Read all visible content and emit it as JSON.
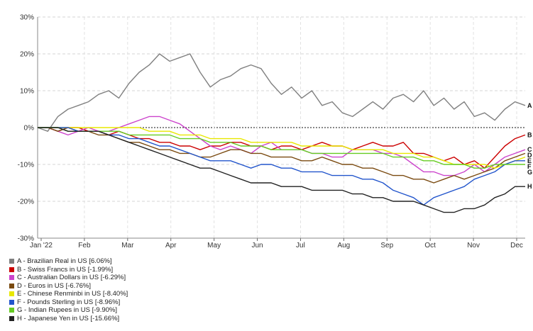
{
  "chart_data": {
    "type": "line",
    "title": "",
    "xlabel": "",
    "ylabel": "",
    "ylim": [
      -30,
      30
    ],
    "y_ticks": [
      "30%",
      "20%",
      "10%",
      "0%",
      "-10%",
      "-20%",
      "-30%"
    ],
    "x_tick_labels": [
      "Jan '22",
      "Feb",
      "Mar",
      "Apr",
      "May",
      "Jun",
      "Jul",
      "Aug",
      "Sep",
      "Oct",
      "Nov",
      "Dec"
    ],
    "grid": true,
    "legend_placement": "bottom",
    "x_weeks": [
      0,
      1,
      2,
      3,
      4,
      5,
      6,
      7,
      8,
      9,
      10,
      11,
      12,
      13,
      14,
      15,
      16,
      17,
      18,
      19,
      20,
      21,
      22,
      23,
      24,
      25,
      26,
      27,
      28,
      29,
      30,
      31,
      32,
      33,
      34,
      35,
      36,
      37,
      38,
      39,
      40,
      41,
      42,
      43,
      44,
      45,
      46,
      47,
      48
    ],
    "series": [
      {
        "name": "A - Brazilian Real in US [6.06%]",
        "end_label": "A",
        "color": "#808080",
        "values": [
          0,
          -1,
          3,
          5,
          6,
          7,
          9,
          10,
          8,
          12,
          15,
          17,
          20,
          18,
          19,
          20,
          15,
          11,
          13,
          14,
          16,
          17,
          16,
          12,
          9,
          11,
          8,
          10,
          6,
          7,
          4,
          3,
          5,
          7,
          5,
          8,
          9,
          7,
          10,
          6,
          8,
          5,
          7,
          3,
          4,
          2,
          5,
          7,
          6
        ]
      },
      {
        "name": "B - Swiss Francs in US [-1.99%]",
        "end_label": "B",
        "color": "#cc0000",
        "values": [
          0,
          0,
          -1,
          0,
          0,
          -1,
          -1,
          -2,
          -1,
          -2,
          -3,
          -3,
          -4,
          -4,
          -5,
          -5,
          -6,
          -5,
          -5,
          -4,
          -4,
          -5,
          -5,
          -6,
          -5,
          -5,
          -6,
          -5,
          -4,
          -5,
          -5,
          -6,
          -5,
          -4,
          -5,
          -5,
          -4,
          -7,
          -7,
          -8,
          -9,
          -8,
          -10,
          -9,
          -11,
          -8,
          -5,
          -3,
          -2
        ]
      },
      {
        "name": "C - Australian Dollars in US [-6.29%]",
        "end_label": "C",
        "color": "#cc44cc",
        "values": [
          0,
          0,
          -1,
          -2,
          -1,
          0,
          -1,
          -1,
          0,
          1,
          2,
          3,
          3,
          2,
          1,
          -1,
          -3,
          -5,
          -6,
          -5,
          -6,
          -7,
          -5,
          -4,
          -6,
          -6,
          -6,
          -7,
          -7,
          -8,
          -8,
          -6,
          -6,
          -6,
          -7,
          -7,
          -8,
          -10,
          -12,
          -12,
          -13,
          -13,
          -12,
          -10,
          -12,
          -10,
          -8,
          -7,
          -6
        ]
      },
      {
        "name": "D - Euros in US [-6.76%]",
        "end_label": "D",
        "color": "#7a4a10",
        "values": [
          0,
          0,
          -1,
          0,
          -1,
          -1,
          -2,
          -2,
          -3,
          -4,
          -4,
          -5,
          -6,
          -6,
          -7,
          -7,
          -8,
          -8,
          -7,
          -6,
          -6,
          -7,
          -7,
          -8,
          -8,
          -8,
          -9,
          -9,
          -8,
          -9,
          -10,
          -10,
          -11,
          -11,
          -12,
          -13,
          -13,
          -14,
          -14,
          -15,
          -14,
          -13,
          -14,
          -13,
          -12,
          -11,
          -9,
          -8,
          -7
        ]
      },
      {
        "name": "E - Chinese Renminbi in US [-8.40%]",
        "end_label": "E",
        "color": "#e8e800",
        "values": [
          0,
          0,
          0,
          0,
          0,
          0,
          0,
          0,
          0,
          0,
          0,
          -1,
          -1,
          -1,
          -2,
          -2,
          -2,
          -3,
          -3,
          -3,
          -3,
          -4,
          -4,
          -4,
          -4,
          -4,
          -5,
          -5,
          -5,
          -5,
          -5,
          -6,
          -6,
          -6,
          -6,
          -7,
          -7,
          -7,
          -8,
          -8,
          -9,
          -10,
          -10,
          -10,
          -10,
          -11,
          -10,
          -9,
          -8
        ]
      },
      {
        "name": "F - Pounds Sterling in US [-8.96%]",
        "end_label": "F",
        "color": "#2255cc",
        "values": [
          0,
          0,
          0,
          0,
          -1,
          -1,
          -1,
          -2,
          -2,
          -3,
          -3,
          -4,
          -5,
          -5,
          -6,
          -7,
          -8,
          -9,
          -9,
          -9,
          -10,
          -11,
          -10,
          -10,
          -11,
          -11,
          -12,
          -12,
          -12,
          -13,
          -13,
          -13,
          -14,
          -14,
          -15,
          -17,
          -18,
          -19,
          -21,
          -19,
          -18,
          -17,
          -16,
          -14,
          -13,
          -12,
          -10,
          -9,
          -9
        ]
      },
      {
        "name": "G - Indian Rupees in US [-9.90%]",
        "end_label": "G",
        "color": "#66cc22",
        "values": [
          0,
          0,
          0,
          -1,
          -1,
          -1,
          -1,
          -1,
          -1,
          -2,
          -2,
          -2,
          -2,
          -2,
          -3,
          -3,
          -3,
          -4,
          -4,
          -4,
          -5,
          -5,
          -5,
          -6,
          -6,
          -6,
          -6,
          -7,
          -7,
          -7,
          -7,
          -7,
          -7,
          -7,
          -7,
          -8,
          -8,
          -8,
          -9,
          -9,
          -10,
          -10,
          -10,
          -11,
          -11,
          -10,
          -10,
          -10,
          -10
        ]
      },
      {
        "name": "H - Japanese Yen in US [-15.66%]",
        "end_label": "H",
        "color": "#222222",
        "values": [
          0,
          0,
          0,
          -1,
          -1,
          -1,
          -1,
          -2,
          -3,
          -4,
          -5,
          -6,
          -7,
          -8,
          -9,
          -10,
          -11,
          -11,
          -12,
          -13,
          -14,
          -15,
          -15,
          -15,
          -16,
          -16,
          -16,
          -17,
          -17,
          -17,
          -17,
          -18,
          -18,
          -19,
          -19,
          -20,
          -20,
          -20,
          -21,
          -22,
          -23,
          -23,
          -22,
          -22,
          -21,
          -19,
          -18,
          -16,
          -16
        ]
      }
    ]
  }
}
